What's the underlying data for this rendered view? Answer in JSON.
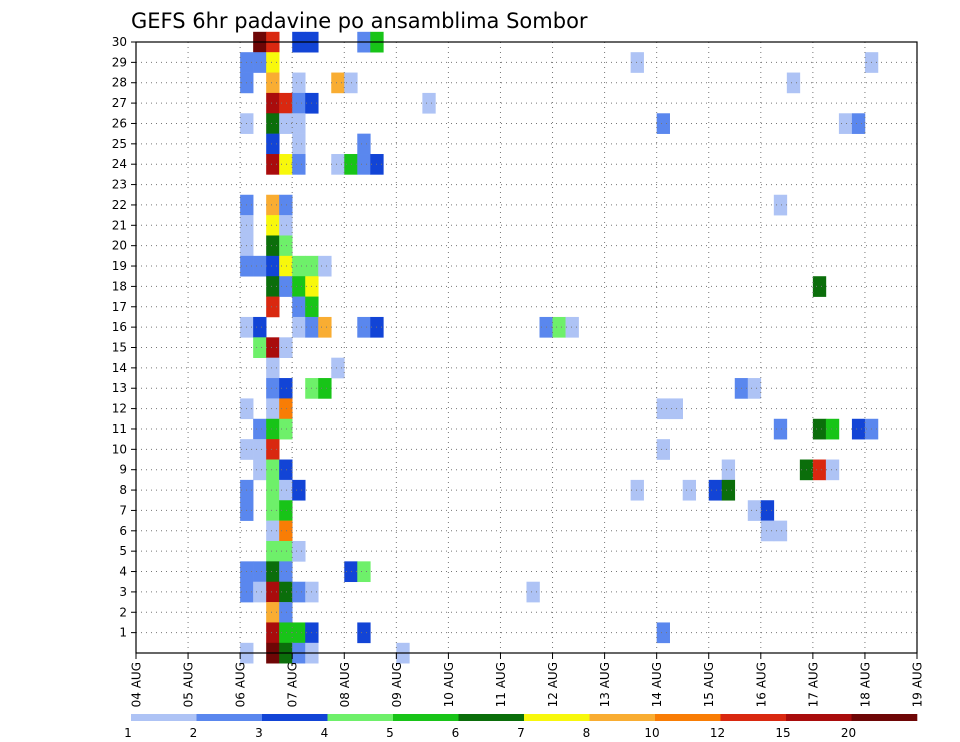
{
  "chart_data": {
    "type": "heatmap",
    "title": "GEFS 6hr padavine po ansamblima Sombor",
    "xlabel": "",
    "ylabel": "",
    "x_ticks": [
      "04 AUG",
      "05 AUG",
      "06 AUG",
      "07 AUG",
      "08 AUG",
      "09 AUG",
      "10 AUG",
      "11 AUG",
      "12 AUG",
      "13 AUG",
      "14 AUG",
      "15 AUG",
      "16 AUG",
      "17 AUG",
      "18 AUG",
      "19 AUG"
    ],
    "y_ticks": [
      1,
      2,
      3,
      4,
      5,
      6,
      7,
      8,
      9,
      10,
      11,
      12,
      13,
      14,
      15,
      16,
      17,
      18,
      19,
      20,
      21,
      22,
      23,
      24,
      25,
      26,
      27,
      28,
      29,
      30
    ],
    "xlim_days": [
      0,
      15
    ],
    "ylim_members": [
      0,
      30
    ],
    "time_step_hours": 6,
    "grid": true,
    "colorbar": {
      "placement": "bottom",
      "labels": [
        "1",
        "2",
        "3",
        "4",
        "5",
        "6",
        "7",
        "8",
        "10",
        "12",
        "15",
        "20"
      ],
      "colors": [
        "#aec3f5",
        "#5a87ee",
        "#1244d6",
        "#6ef06a",
        "#18c418",
        "#0b6e0b",
        "#f8f80c",
        "#f9ad32",
        "#f97d05",
        "#d92810",
        "#a90c0c",
        "#6e0606"
      ]
    },
    "cells": [
      [
        30,
        9,
        11
      ],
      [
        30,
        10,
        9
      ],
      [
        30,
        12,
        2
      ],
      [
        30,
        13,
        2
      ],
      [
        30,
        17,
        1
      ],
      [
        30,
        18,
        4
      ],
      [
        29,
        8,
        1
      ],
      [
        29,
        9,
        1
      ],
      [
        29,
        10,
        6
      ],
      [
        29,
        38,
        0
      ],
      [
        29,
        56,
        0
      ],
      [
        28,
        8,
        1
      ],
      [
        28,
        10,
        7
      ],
      [
        28,
        12,
        0
      ],
      [
        28,
        15,
        7
      ],
      [
        28,
        16,
        0
      ],
      [
        28,
        50,
        0
      ],
      [
        27,
        10,
        10
      ],
      [
        27,
        11,
        9
      ],
      [
        27,
        12,
        1
      ],
      [
        27,
        13,
        2
      ],
      [
        27,
        22,
        0
      ],
      [
        26,
        8,
        0
      ],
      [
        26,
        10,
        5
      ],
      [
        26,
        11,
        0
      ],
      [
        26,
        12,
        0
      ],
      [
        26,
        40,
        1
      ],
      [
        26,
        54,
        0
      ],
      [
        26,
        55,
        1
      ],
      [
        25,
        10,
        2
      ],
      [
        25,
        12,
        0
      ],
      [
        25,
        17,
        1
      ],
      [
        24,
        10,
        10
      ],
      [
        24,
        11,
        6
      ],
      [
        24,
        12,
        1
      ],
      [
        24,
        15,
        0
      ],
      [
        24,
        16,
        4
      ],
      [
        24,
        17,
        1
      ],
      [
        24,
        18,
        2
      ],
      [
        22,
        8,
        1
      ],
      [
        22,
        10,
        7
      ],
      [
        22,
        11,
        1
      ],
      [
        22,
        49,
        0
      ],
      [
        21,
        8,
        0
      ],
      [
        21,
        10,
        6
      ],
      [
        21,
        11,
        0
      ],
      [
        20,
        8,
        0
      ],
      [
        20,
        10,
        5
      ],
      [
        20,
        11,
        3
      ],
      [
        19,
        8,
        1
      ],
      [
        19,
        9,
        1
      ],
      [
        19,
        10,
        2
      ],
      [
        19,
        11,
        6
      ],
      [
        19,
        12,
        3
      ],
      [
        19,
        13,
        3
      ],
      [
        19,
        14,
        0
      ],
      [
        18,
        10,
        5
      ],
      [
        18,
        11,
        1
      ],
      [
        18,
        12,
        4
      ],
      [
        18,
        13,
        6
      ],
      [
        18,
        52,
        5
      ],
      [
        17,
        10,
        9
      ],
      [
        17,
        12,
        1
      ],
      [
        17,
        13,
        4
      ],
      [
        16,
        8,
        0
      ],
      [
        16,
        9,
        2
      ],
      [
        16,
        12,
        0
      ],
      [
        16,
        13,
        1
      ],
      [
        16,
        14,
        7
      ],
      [
        16,
        17,
        1
      ],
      [
        16,
        18,
        2
      ],
      [
        16,
        31,
        1
      ],
      [
        16,
        32,
        3
      ],
      [
        16,
        33,
        0
      ],
      [
        15,
        9,
        3
      ],
      [
        15,
        10,
        10
      ],
      [
        15,
        11,
        0
      ],
      [
        14,
        10,
        0
      ],
      [
        14,
        15,
        0
      ],
      [
        13,
        10,
        1
      ],
      [
        13,
        11,
        2
      ],
      [
        13,
        13,
        3
      ],
      [
        13,
        14,
        4
      ],
      [
        13,
        46,
        1
      ],
      [
        13,
        47,
        0
      ],
      [
        12,
        8,
        0
      ],
      [
        12,
        10,
        0
      ],
      [
        12,
        11,
        8
      ],
      [
        12,
        40,
        0
      ],
      [
        12,
        41,
        0
      ],
      [
        11,
        9,
        1
      ],
      [
        11,
        10,
        4
      ],
      [
        11,
        11,
        3
      ],
      [
        11,
        49,
        1
      ],
      [
        11,
        52,
        5
      ],
      [
        11,
        53,
        4
      ],
      [
        11,
        55,
        2
      ],
      [
        11,
        56,
        1
      ],
      [
        10,
        8,
        0
      ],
      [
        10,
        9,
        0
      ],
      [
        10,
        10,
        9
      ],
      [
        10,
        40,
        0
      ],
      [
        9,
        9,
        0
      ],
      [
        9,
        10,
        3
      ],
      [
        9,
        11,
        2
      ],
      [
        9,
        45,
        0
      ],
      [
        9,
        51,
        5
      ],
      [
        9,
        52,
        9
      ],
      [
        9,
        53,
        0
      ],
      [
        8,
        8,
        1
      ],
      [
        8,
        10,
        3
      ],
      [
        8,
        11,
        0
      ],
      [
        8,
        12,
        2
      ],
      [
        8,
        38,
        0
      ],
      [
        8,
        42,
        0
      ],
      [
        8,
        44,
        2
      ],
      [
        8,
        45,
        5
      ],
      [
        7,
        8,
        1
      ],
      [
        7,
        10,
        3
      ],
      [
        7,
        11,
        4
      ],
      [
        7,
        47,
        0
      ],
      [
        7,
        48,
        2
      ],
      [
        6,
        10,
        0
      ],
      [
        6,
        11,
        8
      ],
      [
        6,
        48,
        0
      ],
      [
        6,
        49,
        0
      ],
      [
        5,
        10,
        3
      ],
      [
        5,
        11,
        3
      ],
      [
        5,
        12,
        0
      ],
      [
        4,
        8,
        1
      ],
      [
        4,
        9,
        1
      ],
      [
        4,
        10,
        5
      ],
      [
        4,
        11,
        1
      ],
      [
        4,
        16,
        2
      ],
      [
        4,
        17,
        3
      ],
      [
        3,
        8,
        1
      ],
      [
        3,
        9,
        0
      ],
      [
        3,
        10,
        10
      ],
      [
        3,
        11,
        5
      ],
      [
        3,
        12,
        1
      ],
      [
        3,
        13,
        0
      ],
      [
        3,
        30,
        0
      ],
      [
        2,
        10,
        7
      ],
      [
        2,
        11,
        1
      ],
      [
        1,
        10,
        10
      ],
      [
        1,
        11,
        4
      ],
      [
        1,
        12,
        4
      ],
      [
        1,
        13,
        2
      ],
      [
        1,
        17,
        2
      ],
      [
        1,
        40,
        1
      ],
      [
        0,
        8,
        0
      ],
      [
        0,
        10,
        11
      ],
      [
        0,
        11,
        5
      ],
      [
        0,
        12,
        1
      ],
      [
        0,
        13,
        0
      ],
      [
        0,
        20,
        0
      ]
    ]
  }
}
